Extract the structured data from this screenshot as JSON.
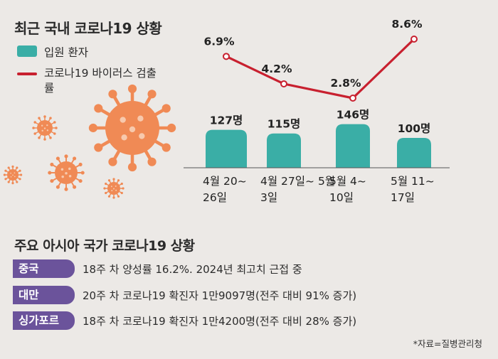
{
  "title": "최근 국내 코로나19 상황",
  "legend": {
    "bar_label": "입원 환자",
    "line_label": "코로나19 바이러스 검출률"
  },
  "colors": {
    "bar": "#3aaea6",
    "line": "#c8202f",
    "virus": "#f08a55",
    "tag": "#6b539b",
    "background": "#ece9e6"
  },
  "chart_data": {
    "type": "bar",
    "categories": [
      "4월 20~ 26일",
      "4월 27일~ 5월 3일",
      "5월 4~ 10일",
      "5월 11~ 17일"
    ],
    "series": [
      {
        "name": "입원 환자",
        "type": "bar",
        "values": [
          127,
          115,
          146,
          100
        ],
        "value_labels": [
          "127명",
          "115명",
          "146명",
          "100명"
        ]
      },
      {
        "name": "코로나19 바이러스 검출률",
        "type": "line",
        "values": [
          6.9,
          4.2,
          2.8,
          8.6
        ],
        "value_labels": [
          "6.9%",
          "4.2%",
          "2.8%",
          "8.6%"
        ]
      }
    ],
    "title": "최근 국내 코로나19 상황",
    "xlabel": "",
    "ylabel": "",
    "grid": false,
    "legend_position": "top-left"
  },
  "section2": {
    "title": "주요 아시아 국가 코로나19 상황",
    "rows": [
      {
        "country": "중국",
        "text": "18주 차 양성률 16.2%. 2024년 최고치 근접 중"
      },
      {
        "country": "대만",
        "text": "20주 차 코로나19 확진자 1만9097명(전주 대비 91% 증가)"
      },
      {
        "country": "싱가포르",
        "text": "18주 차 코로나19 확진자 1만4200명(전주 대비 28% 증가)"
      }
    ]
  },
  "source": "*자료=질병관리청"
}
